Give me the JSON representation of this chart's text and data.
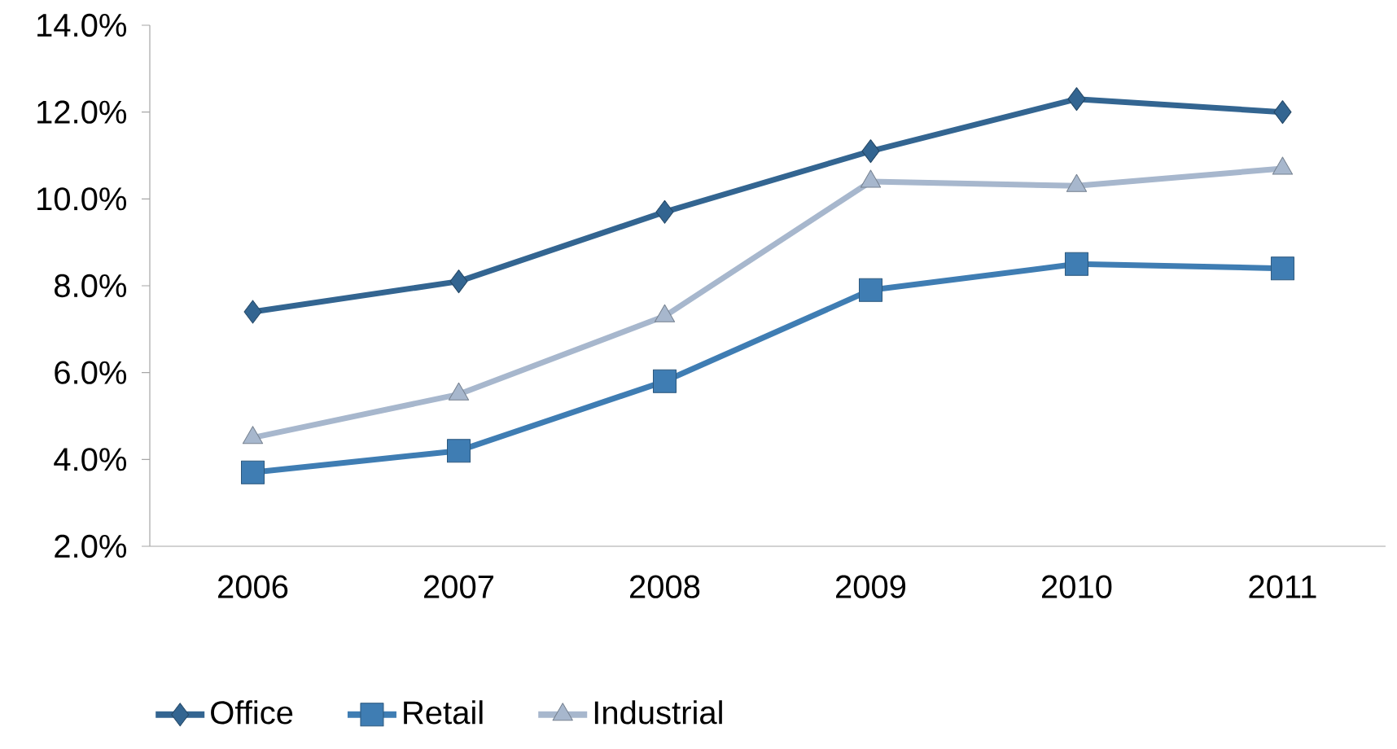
{
  "chart_data": {
    "type": "line",
    "categories": [
      "2006",
      "2007",
      "2008",
      "2009",
      "2010",
      "2011"
    ],
    "series": [
      {
        "name": "Office",
        "color": "#336591",
        "marker": "diamond",
        "values": [
          7.4,
          8.1,
          9.7,
          11.1,
          12.3,
          12.0
        ]
      },
      {
        "name": "Retail",
        "color": "#3f7db3",
        "marker": "square",
        "values": [
          3.7,
          4.2,
          5.8,
          7.9,
          8.5,
          8.4
        ]
      },
      {
        "name": "Industrial",
        "color": "#a7b7cd",
        "marker": "triangle",
        "values": [
          4.5,
          5.5,
          7.3,
          10.4,
          10.3,
          10.7
        ]
      }
    ],
    "ylim": [
      2,
      14
    ],
    "yticks": [
      {
        "value": 2,
        "label": "2.0%"
      },
      {
        "value": 4,
        "label": "4.0%"
      },
      {
        "value": 6,
        "label": "6.0%"
      },
      {
        "value": 8,
        "label": "8.0%"
      },
      {
        "value": 10,
        "label": "10.0%"
      },
      {
        "value": 12,
        "label": "12.0%"
      },
      {
        "value": 14,
        "label": "14.0%"
      }
    ],
    "grid": false,
    "legend": "bottom",
    "line_style": "solid"
  }
}
